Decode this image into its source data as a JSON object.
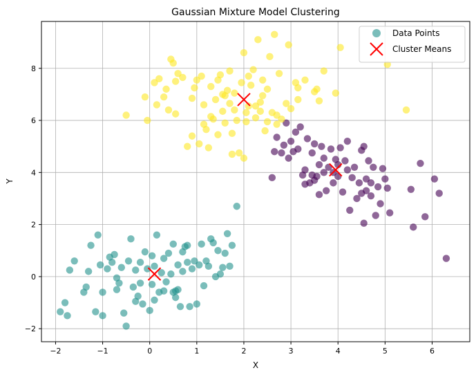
{
  "chart_data": {
    "type": "scatter",
    "title": "Gaussian Mixture Model Clustering",
    "xlabel": "X",
    "ylabel": "Y",
    "xlim": [
      -2.3,
      6.8
    ],
    "ylim": [
      -2.5,
      9.8
    ],
    "xticks": [
      -2,
      -1,
      0,
      1,
      2,
      3,
      4,
      5,
      6
    ],
    "yticks": [
      -2,
      0,
      2,
      4,
      6,
      8
    ],
    "grid": true,
    "legend_position": "top-right",
    "legend": [
      "Data Points",
      "Cluster Means"
    ],
    "colors": {
      "cluster_low": "#440154",
      "cluster_mid": "#21918c",
      "cluster_high": "#fde725",
      "means": "#ff0000",
      "grid": "#b0b0b0"
    },
    "series": [
      {
        "name": "Data Points",
        "cluster": "mid",
        "points": [
          [
            -1.9,
            -1.35
          ],
          [
            -1.8,
            -1.0
          ],
          [
            -1.75,
            -1.5
          ],
          [
            -1.7,
            0.25
          ],
          [
            -1.6,
            0.6
          ],
          [
            -1.4,
            -0.6
          ],
          [
            -1.35,
            -0.4
          ],
          [
            -1.3,
            0.2
          ],
          [
            -1.25,
            1.2
          ],
          [
            -1.15,
            -1.35
          ],
          [
            -1.1,
            1.6
          ],
          [
            -1.05,
            0.45
          ],
          [
            -1.0,
            -0.6
          ],
          [
            -1.0,
            -1.5
          ],
          [
            -0.9,
            0.3
          ],
          [
            -0.8,
            0.55
          ],
          [
            -0.75,
            0.85
          ],
          [
            -0.7,
            -0.05
          ],
          [
            -0.7,
            -0.5
          ],
          [
            -0.65,
            -0.25
          ],
          [
            -0.6,
            0.35
          ],
          [
            -0.55,
            -1.4
          ],
          [
            -0.5,
            -1.9
          ],
          [
            -0.45,
            0.6
          ],
          [
            -0.4,
            1.45
          ],
          [
            -0.35,
            -0.4
          ],
          [
            -0.3,
            0.25
          ],
          [
            -0.25,
            -0.75
          ],
          [
            -0.2,
            0.55
          ],
          [
            -0.15,
            -1.05
          ],
          [
            -0.1,
            0.95
          ],
          [
            -0.05,
            0.3
          ],
          [
            0.0,
            -1.3
          ],
          [
            0.05,
            0.8
          ],
          [
            0.05,
            -0.3
          ],
          [
            0.1,
            0.4
          ],
          [
            0.15,
            1.6
          ],
          [
            0.2,
            -0.6
          ],
          [
            0.25,
            0.15
          ],
          [
            0.3,
            0.7
          ],
          [
            0.35,
            -0.2
          ],
          [
            0.4,
            0.9
          ],
          [
            0.45,
            0.1
          ],
          [
            0.5,
            1.25
          ],
          [
            0.55,
            -0.8
          ],
          [
            0.6,
            0.45
          ],
          [
            0.6,
            -0.5
          ],
          [
            0.65,
            -1.15
          ],
          [
            0.7,
            0.2
          ],
          [
            0.75,
            1.15
          ],
          [
            0.8,
            0.55
          ],
          [
            0.85,
            -1.15
          ],
          [
            0.9,
            0.3
          ],
          [
            0.95,
            0.6
          ],
          [
            1.0,
            -1.05
          ],
          [
            1.05,
            0.45
          ],
          [
            1.1,
            1.25
          ],
          [
            1.15,
            -0.35
          ],
          [
            1.2,
            0.6
          ],
          [
            1.25,
            0.4
          ],
          [
            1.3,
            1.45
          ],
          [
            1.35,
            1.3
          ],
          [
            1.4,
            0.0
          ],
          [
            1.45,
            1.0
          ],
          [
            1.5,
            0.1
          ],
          [
            1.55,
            0.35
          ],
          [
            1.6,
            0.9
          ],
          [
            1.65,
            1.65
          ],
          [
            1.7,
            0.4
          ],
          [
            1.75,
            1.2
          ],
          [
            1.85,
            2.7
          ],
          [
            0.8,
            1.2
          ],
          [
            -0.3,
            -0.95
          ],
          [
            0.3,
            -0.55
          ],
          [
            0.55,
            -0.55
          ],
          [
            -0.85,
            0.75
          ],
          [
            0.5,
            -0.6
          ],
          [
            0.7,
            0.95
          ],
          [
            -0.2,
            -0.25
          ],
          [
            0.1,
            -0.9
          ]
        ]
      },
      {
        "name": "Data Points",
        "cluster": "low",
        "points": [
          [
            2.6,
            3.8
          ],
          [
            2.65,
            4.8
          ],
          [
            2.7,
            5.35
          ],
          [
            2.8,
            4.75
          ],
          [
            2.85,
            5.05
          ],
          [
            2.9,
            5.9
          ],
          [
            2.95,
            4.55
          ],
          [
            3.0,
            5.2
          ],
          [
            3.05,
            4.8
          ],
          [
            3.1,
            5.55
          ],
          [
            3.15,
            4.9
          ],
          [
            3.2,
            5.75
          ],
          [
            3.25,
            3.9
          ],
          [
            3.3,
            4.1
          ],
          [
            3.35,
            5.3
          ],
          [
            3.4,
            3.6
          ],
          [
            3.45,
            4.75
          ],
          [
            3.5,
            5.1
          ],
          [
            3.55,
            3.85
          ],
          [
            3.6,
            4.3
          ],
          [
            3.65,
            5.0
          ],
          [
            3.7,
            4.55
          ],
          [
            3.75,
            3.3
          ],
          [
            3.8,
            4.2
          ],
          [
            3.85,
            4.9
          ],
          [
            3.9,
            3.6
          ],
          [
            3.95,
            4.5
          ],
          [
            4.0,
            3.85
          ],
          [
            4.05,
            4.95
          ],
          [
            4.1,
            3.25
          ],
          [
            4.15,
            4.45
          ],
          [
            4.2,
            5.2
          ],
          [
            4.25,
            2.55
          ],
          [
            4.3,
            3.8
          ],
          [
            4.35,
            4.2
          ],
          [
            4.4,
            3.0
          ],
          [
            4.45,
            3.6
          ],
          [
            4.5,
            4.85
          ],
          [
            4.55,
            2.05
          ],
          [
            4.6,
            3.3
          ],
          [
            4.65,
            4.45
          ],
          [
            4.7,
            3.1
          ],
          [
            4.75,
            4.2
          ],
          [
            4.8,
            2.35
          ],
          [
            4.85,
            3.45
          ],
          [
            4.9,
            2.8
          ],
          [
            4.95,
            4.15
          ],
          [
            5.0,
            3.75
          ],
          [
            5.05,
            3.4
          ],
          [
            5.1,
            2.45
          ],
          [
            5.55,
            3.35
          ],
          [
            5.6,
            1.9
          ],
          [
            5.75,
            4.35
          ],
          [
            5.85,
            2.3
          ],
          [
            6.05,
            3.75
          ],
          [
            6.15,
            3.2
          ],
          [
            6.3,
            0.7
          ],
          [
            3.3,
            3.55
          ],
          [
            3.5,
            3.7
          ],
          [
            3.6,
            3.15
          ],
          [
            4.0,
            4.3
          ],
          [
            4.6,
            3.75
          ],
          [
            4.2,
            4.1
          ],
          [
            3.45,
            3.9
          ],
          [
            3.9,
            4.0
          ],
          [
            4.55,
            5.0
          ],
          [
            3.7,
            4.0
          ],
          [
            4.5,
            3.2
          ],
          [
            4.7,
            3.6
          ]
        ]
      },
      {
        "name": "Data Points",
        "cluster": "high",
        "points": [
          [
            -0.5,
            6.2
          ],
          [
            -0.1,
            6.9
          ],
          [
            -0.05,
            6.0
          ],
          [
            0.1,
            7.45
          ],
          [
            0.15,
            6.6
          ],
          [
            0.2,
            7.6
          ],
          [
            0.3,
            6.9
          ],
          [
            0.35,
            7.2
          ],
          [
            0.4,
            6.4
          ],
          [
            0.45,
            8.35
          ],
          [
            0.5,
            8.2
          ],
          [
            0.55,
            7.5
          ],
          [
            0.6,
            7.8
          ],
          [
            0.7,
            7.65
          ],
          [
            0.8,
            5.0
          ],
          [
            0.9,
            6.85
          ],
          [
            1.0,
            7.55
          ],
          [
            1.05,
            5.1
          ],
          [
            1.1,
            7.7
          ],
          [
            1.15,
            6.6
          ],
          [
            1.2,
            5.65
          ],
          [
            1.25,
            4.95
          ],
          [
            1.3,
            7.3
          ],
          [
            1.35,
            6.05
          ],
          [
            1.4,
            6.8
          ],
          [
            1.45,
            5.45
          ],
          [
            1.5,
            7.75
          ],
          [
            1.55,
            6.35
          ],
          [
            1.6,
            5.9
          ],
          [
            1.65,
            7.15
          ],
          [
            1.7,
            7.9
          ],
          [
            1.75,
            5.5
          ],
          [
            1.8,
            7.05
          ],
          [
            1.85,
            6.0
          ],
          [
            1.9,
            4.75
          ],
          [
            1.95,
            7.45
          ],
          [
            2.0,
            8.6
          ],
          [
            2.05,
            5.95
          ],
          [
            2.1,
            6.55
          ],
          [
            2.15,
            7.35
          ],
          [
            2.2,
            7.95
          ],
          [
            2.25,
            6.1
          ],
          [
            2.3,
            9.1
          ],
          [
            2.35,
            6.7
          ],
          [
            2.4,
            7.55
          ],
          [
            2.45,
            5.6
          ],
          [
            2.5,
            7.2
          ],
          [
            2.55,
            8.45
          ],
          [
            2.6,
            6.3
          ],
          [
            2.65,
            9.3
          ],
          [
            2.7,
            5.85
          ],
          [
            2.75,
            7.8
          ],
          [
            2.8,
            6.05
          ],
          [
            2.9,
            6.65
          ],
          [
            2.95,
            8.9
          ],
          [
            3.0,
            6.45
          ],
          [
            3.1,
            7.45
          ],
          [
            3.15,
            6.8
          ],
          [
            3.3,
            7.55
          ],
          [
            3.5,
            7.1
          ],
          [
            3.6,
            6.75
          ],
          [
            3.7,
            7.9
          ],
          [
            3.95,
            7.05
          ],
          [
            4.05,
            8.8
          ],
          [
            5.05,
            8.15
          ],
          [
            5.45,
            6.4
          ],
          [
            1.75,
            4.7
          ],
          [
            2.0,
            4.55
          ],
          [
            1.45,
            7.55
          ],
          [
            2.25,
            6.55
          ],
          [
            1.6,
            6.95
          ],
          [
            2.4,
            6.95
          ],
          [
            1.8,
            6.4
          ],
          [
            2.1,
            7.7
          ],
          [
            2.5,
            5.95
          ],
          [
            1.3,
            6.15
          ],
          [
            2.35,
            6.35
          ],
          [
            1.55,
            7.0
          ],
          [
            2.7,
            6.2
          ],
          [
            3.15,
            7.25
          ],
          [
            0.9,
            5.4
          ],
          [
            0.95,
            7.25
          ],
          [
            1.15,
            5.85
          ],
          [
            0.55,
            6.25
          ],
          [
            3.55,
            7.2
          ],
          [
            1.7,
            6.65
          ],
          [
            2.05,
            6.3
          ]
        ]
      }
    ],
    "means": [
      {
        "name": "Cluster Means",
        "x": 0.1,
        "y": 0.1
      },
      {
        "name": "Cluster Means",
        "x": 3.95,
        "y": 4.1
      },
      {
        "name": "Cluster Means",
        "x": 2.0,
        "y": 6.8
      }
    ]
  }
}
